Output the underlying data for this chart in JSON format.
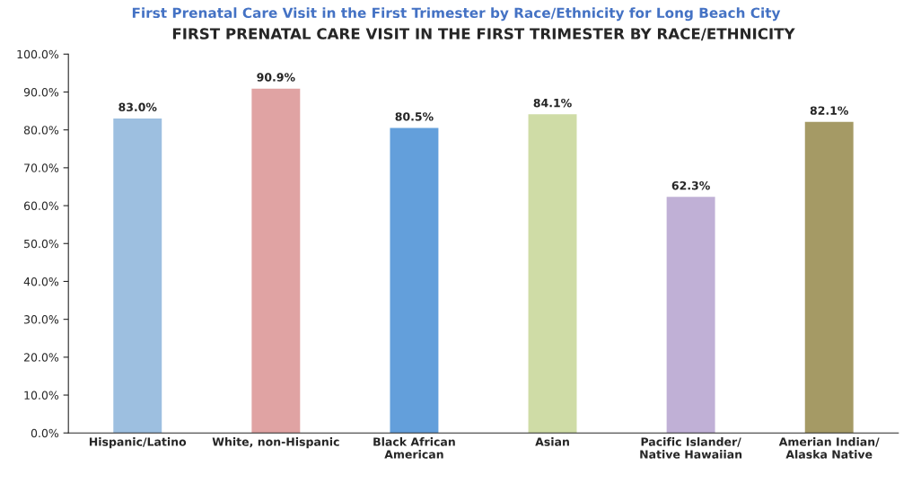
{
  "chart_data": {
    "type": "bar",
    "title": "FIRST PRENATAL CARE VISIT IN THE FIRST TRIMESTER BY RACE/ETHNICITY",
    "annotations": [
      "First Prenatal Care Visit in the First Trimester by Race/Ethnicity for Long Beach City"
    ],
    "categories": [
      "Hispanic/Latino",
      "White, non-Hispanic",
      "Black African\nAmerican",
      "Asian",
      "Pacific Islander/\nNative Hawaiian",
      "Amerian Indian/\nAlaska Native"
    ],
    "values": [
      83.0,
      90.9,
      80.5,
      84.1,
      62.3,
      82.1
    ],
    "value_labels": [
      "83.0%",
      "90.9%",
      "80.5%",
      "84.1%",
      "62.3%",
      "82.1%"
    ],
    "colors": [
      "#9dbfe0",
      "#e0a3a3",
      "#639fdb",
      "#cfdca6",
      "#c0b0d6",
      "#a59a65"
    ],
    "ylim": [
      0,
      100
    ],
    "yticks": [
      {
        "value": 0,
        "label": "0.0%"
      },
      {
        "value": 10,
        "label": "10.0%"
      },
      {
        "value": 20,
        "label": "20.0%"
      },
      {
        "value": 30,
        "label": "30.0%"
      },
      {
        "value": 40,
        "label": "40.0%"
      },
      {
        "value": 50,
        "label": "50.0%"
      },
      {
        "value": 60,
        "label": "60.0%"
      },
      {
        "value": 70,
        "label": "70.0%"
      },
      {
        "value": 80,
        "label": "80.0%"
      },
      {
        "value": 90,
        "label": "90.0%"
      },
      {
        "value": 100,
        "label": "100.0%"
      }
    ],
    "grid": false,
    "legend": false
  }
}
